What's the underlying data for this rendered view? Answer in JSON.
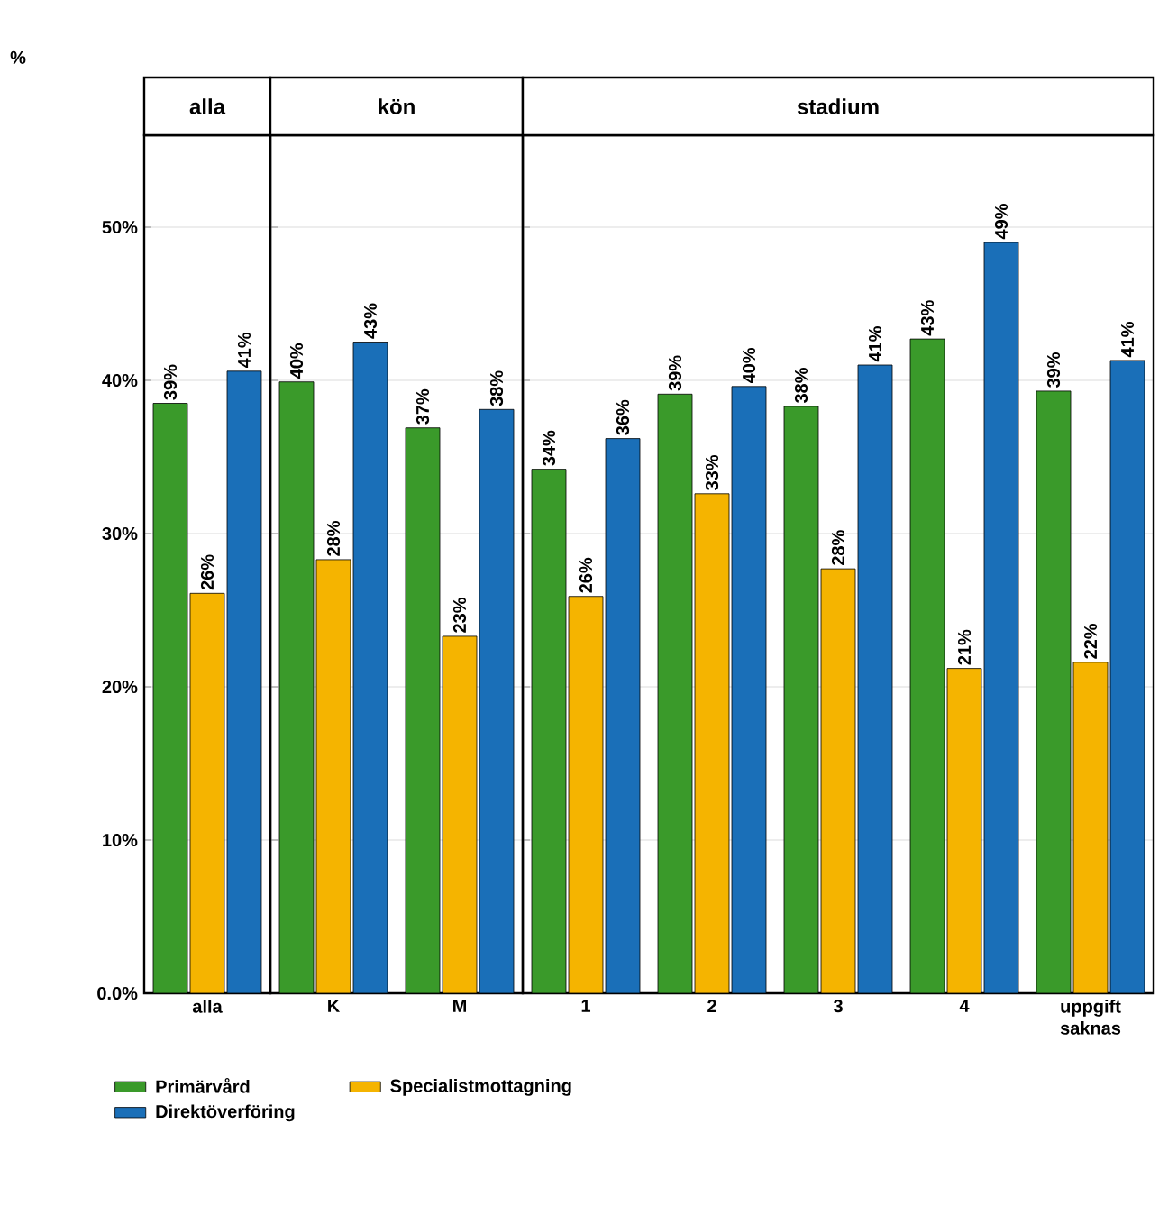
{
  "chart_data": [
    {
      "type": "bar",
      "title": "alla",
      "ylabel": "%",
      "categories": [
        "alla"
      ],
      "ylim": [
        0,
        56
      ],
      "yticks": [
        {
          "value": 0,
          "label": "0.0%"
        },
        {
          "value": 10,
          "label": "10%"
        },
        {
          "value": 20,
          "label": "20%"
        },
        {
          "value": 30,
          "label": "30%"
        },
        {
          "value": 40,
          "label": "40%"
        },
        {
          "value": 50,
          "label": "50%"
        }
      ],
      "grid": "y",
      "legend": "bottom",
      "series": [
        {
          "name": "Primärvård",
          "color": "#3a9a2a",
          "values": [
            38.5
          ],
          "value_labels": [
            "39%"
          ]
        },
        {
          "name": "Specialistmottagning",
          "color": "#f5b400",
          "values": [
            26.1
          ],
          "value_labels": [
            "26%"
          ]
        },
        {
          "name": "Direktöverföring",
          "color": "#1a6fb8",
          "values": [
            40.6
          ],
          "value_labels": [
            "41%"
          ]
        }
      ]
    },
    {
      "type": "bar",
      "title": "kön",
      "categories": [
        "K",
        "M"
      ],
      "ylim": [
        0,
        56
      ],
      "yticks": [
        0,
        10,
        20,
        30,
        40,
        50
      ],
      "grid": "y",
      "tick_labels": "x",
      "series": [
        {
          "color": "#3a9a2a",
          "values": [
            39.9,
            36.9
          ],
          "value_labels": [
            "40%",
            "37%"
          ]
        },
        {
          "color": "#f5b400",
          "values": [
            28.3,
            23.3
          ],
          "value_labels": [
            "28%",
            "23%"
          ]
        },
        {
          "color": "#1a6fb8",
          "values": [
            42.5,
            38.1
          ],
          "value_labels": [
            "43%",
            "38%"
          ]
        }
      ]
    },
    {
      "type": "bar",
      "title": "stadium",
      "categories": [
        "1",
        "2",
        "3",
        "4",
        "uppgift saknas"
      ],
      "ylim": [
        0,
        56
      ],
      "yticks": [
        0,
        10,
        20,
        30,
        40,
        50
      ],
      "grid": "y",
      "tick_labels": "x",
      "series": [
        {
          "color": "#3a9a2a",
          "values": [
            34.2,
            39.1,
            38.3,
            42.7,
            39.3
          ],
          "value_labels": [
            "34%",
            "39%",
            "38%",
            "43%",
            "39%"
          ]
        },
        {
          "color": "#f5b400",
          "values": [
            25.9,
            32.6,
            27.7,
            21.2,
            21.6
          ],
          "value_labels": [
            "26%",
            "33%",
            "28%",
            "21%",
            "22%"
          ]
        },
        {
          "color": "#1a6fb8",
          "values": [
            36.2,
            39.6,
            41.0,
            49.0,
            41.3
          ],
          "value_labels": [
            "36%",
            "40%",
            "41%",
            "49%",
            "41%"
          ]
        }
      ]
    }
  ]
}
